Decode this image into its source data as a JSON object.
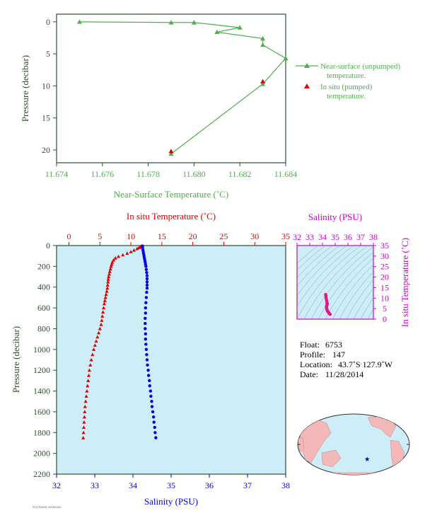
{
  "colors": {
    "green": "#4cb04c",
    "red": "#e00000",
    "blue": "#0000e0",
    "magenta": "#cc00cc",
    "plot_bg": "#cdeef8",
    "axis_dark": "#2f4f2f",
    "land": "#f4b8b8",
    "ocean": "#cdeef8"
  },
  "chart_data": [
    {
      "type": "line",
      "id": "near-surface-profile",
      "xlabel": "Near-Surface Temperature (˚C)",
      "ylabel": "Pressure (decibar)",
      "xlim": [
        11.674,
        11.684
      ],
      "ylim": [
        22,
        -1.2
      ],
      "xticks": [
        "11.674",
        "11.676",
        "11.678",
        "11.680",
        "11.682",
        "11.684"
      ],
      "xtick_values": [
        11.674,
        11.676,
        11.678,
        11.68,
        11.682,
        11.684
      ],
      "yticks": [
        "0",
        "5",
        "10",
        "15",
        "20"
      ],
      "ytick_values": [
        0,
        5,
        10,
        15,
        20
      ],
      "series": [
        {
          "name": "Near-surface (unpumped) temperature.",
          "marker": "triangle",
          "color": "#4cb04c",
          "points": [
            [
              11.675,
              0.0
            ],
            [
              11.679,
              0.1
            ],
            [
              11.68,
              0.1
            ],
            [
              11.682,
              0.9
            ],
            [
              11.681,
              1.6
            ],
            [
              11.683,
              2.6
            ],
            [
              11.683,
              3.6
            ],
            [
              11.684,
              5.7
            ],
            [
              11.683,
              9.7
            ],
            [
              11.679,
              20.6
            ]
          ]
        },
        {
          "name": "In situ (pumped) temperature.",
          "marker": "triangle",
          "color": "#e00000",
          "points": [
            [
              11.683,
              9.3
            ],
            [
              11.679,
              20.2
            ]
          ]
        }
      ]
    },
    {
      "type": "scatter",
      "id": "deep-profile",
      "top_xlabel": "In situ Temperature (˚C)",
      "bottom_xlabel": "Salinity (PSU)",
      "ylabel": "Pressure (decibar)",
      "temp_lim": [
        -2,
        35
      ],
      "sal_lim": [
        32,
        38
      ],
      "ylim": [
        0,
        2200
      ],
      "temp_ticks": [
        "0",
        "5",
        "10",
        "15",
        "20",
        "25",
        "30",
        "35"
      ],
      "temp_tick_values": [
        0,
        5,
        10,
        15,
        20,
        25,
        30,
        35
      ],
      "sal_ticks": [
        "32",
        "33",
        "34",
        "35",
        "36",
        "37",
        "38"
      ],
      "sal_tick_values": [
        32,
        33,
        34,
        35,
        36,
        37,
        38
      ],
      "yticks": [
        "0",
        "200",
        "400",
        "600",
        "800",
        "1000",
        "1200",
        "1400",
        "1600",
        "1800",
        "2000",
        "2200"
      ],
      "ytick_values": [
        0,
        200,
        400,
        600,
        800,
        1000,
        1200,
        1400,
        1600,
        1800,
        2000,
        2200
      ],
      "temperature": [
        [
          11.68,
          5
        ],
        [
          11.6,
          10
        ],
        [
          11.5,
          15
        ],
        [
          11.3,
          20
        ],
        [
          11.0,
          30
        ],
        [
          10.5,
          45
        ],
        [
          10.0,
          60
        ],
        [
          9.4,
          75
        ],
        [
          8.7,
          90
        ],
        [
          8.0,
          105
        ],
        [
          7.5,
          120
        ],
        [
          7.2,
          140
        ],
        [
          7.0,
          160
        ],
        [
          6.9,
          180
        ],
        [
          6.8,
          200
        ],
        [
          6.7,
          225
        ],
        [
          6.6,
          250
        ],
        [
          6.5,
          275
        ],
        [
          6.4,
          300
        ],
        [
          6.35,
          325
        ],
        [
          6.3,
          350
        ],
        [
          6.25,
          380
        ],
        [
          6.2,
          410
        ],
        [
          6.1,
          440
        ],
        [
          6.0,
          470
        ],
        [
          5.9,
          500
        ],
        [
          5.8,
          530
        ],
        [
          5.7,
          560
        ],
        [
          5.6,
          600
        ],
        [
          5.5,
          640
        ],
        [
          5.4,
          680
        ],
        [
          5.3,
          720
        ],
        [
          5.2,
          760
        ],
        [
          5.0,
          800
        ],
        [
          4.8,
          840
        ],
        [
          4.6,
          880
        ],
        [
          4.4,
          920
        ],
        [
          4.2,
          960
        ],
        [
          4.0,
          1000
        ],
        [
          3.8,
          1050
        ],
        [
          3.6,
          1100
        ],
        [
          3.45,
          1150
        ],
        [
          3.3,
          1200
        ],
        [
          3.2,
          1250
        ],
        [
          3.1,
          1300
        ],
        [
          3.0,
          1350
        ],
        [
          2.9,
          1400
        ],
        [
          2.8,
          1450
        ],
        [
          2.7,
          1500
        ],
        [
          2.6,
          1550
        ],
        [
          2.55,
          1600
        ],
        [
          2.5,
          1650
        ],
        [
          2.45,
          1700
        ],
        [
          2.4,
          1750
        ],
        [
          2.35,
          1800
        ],
        [
          2.3,
          1850
        ]
      ],
      "salinity": [
        [
          34.25,
          5
        ],
        [
          34.25,
          20
        ],
        [
          34.26,
          40
        ],
        [
          34.27,
          60
        ],
        [
          34.28,
          80
        ],
        [
          34.29,
          100
        ],
        [
          34.3,
          120
        ],
        [
          34.31,
          140
        ],
        [
          34.32,
          160
        ],
        [
          34.33,
          180
        ],
        [
          34.34,
          200
        ],
        [
          34.35,
          230
        ],
        [
          34.36,
          260
        ],
        [
          34.37,
          290
        ],
        [
          34.37,
          320
        ],
        [
          34.37,
          350
        ],
        [
          34.37,
          380
        ],
        [
          34.37,
          410
        ],
        [
          34.36,
          450
        ],
        [
          34.35,
          500
        ],
        [
          34.34,
          550
        ],
        [
          34.33,
          600
        ],
        [
          34.33,
          650
        ],
        [
          34.32,
          700
        ],
        [
          34.32,
          750
        ],
        [
          34.32,
          800
        ],
        [
          34.33,
          850
        ],
        [
          34.33,
          900
        ],
        [
          34.34,
          950
        ],
        [
          34.35,
          1000
        ],
        [
          34.36,
          1050
        ],
        [
          34.37,
          1100
        ],
        [
          34.38,
          1150
        ],
        [
          34.4,
          1200
        ],
        [
          34.41,
          1250
        ],
        [
          34.43,
          1300
        ],
        [
          34.44,
          1350
        ],
        [
          34.46,
          1400
        ],
        [
          34.47,
          1450
        ],
        [
          34.49,
          1500
        ],
        [
          34.5,
          1550
        ],
        [
          34.52,
          1600
        ],
        [
          34.54,
          1650
        ],
        [
          34.55,
          1700
        ],
        [
          34.57,
          1750
        ],
        [
          34.58,
          1800
        ],
        [
          34.6,
          1850
        ]
      ]
    },
    {
      "type": "scatter",
      "id": "ts-diagram",
      "title": "Salinity (PSU)",
      "ylabel": "In situ Temperature (˚C)",
      "xlim": [
        32,
        38
      ],
      "ylim": [
        0,
        35
      ],
      "xticks": [
        "32",
        "33",
        "34",
        "35",
        "36",
        "37",
        "38"
      ],
      "xtick_values": [
        32,
        33,
        34,
        35,
        36,
        37,
        38
      ],
      "yticks": [
        "0",
        "5",
        "10",
        "15",
        "20",
        "25",
        "30",
        "35"
      ],
      "ytick_values": [
        0,
        5,
        10,
        15,
        20,
        25,
        30,
        35
      ],
      "points": [
        [
          34.6,
          2.3
        ],
        [
          34.55,
          2.6
        ],
        [
          34.5,
          3.0
        ],
        [
          34.45,
          3.4
        ],
        [
          34.4,
          3.8
        ],
        [
          34.37,
          4.2
        ],
        [
          34.34,
          4.8
        ],
        [
          34.33,
          5.3
        ],
        [
          34.32,
          5.8
        ],
        [
          34.33,
          6.3
        ],
        [
          34.35,
          6.6
        ],
        [
          34.37,
          7.0
        ],
        [
          34.37,
          7.5
        ],
        [
          34.35,
          8.0
        ],
        [
          34.32,
          9.0
        ],
        [
          34.29,
          10.0
        ],
        [
          34.27,
          11.0
        ],
        [
          34.25,
          11.7
        ]
      ]
    }
  ],
  "info": {
    "float_label": "Float:",
    "float_value": "6753",
    "profile_label": "Profile:",
    "profile_value": "147",
    "location_label": "Location:",
    "location_value": "43.7˚S  127.9˚W",
    "date_label": "Date:",
    "date_value": "11/28/2014"
  },
  "map": {
    "location_lon": -127.9,
    "location_lat": -43.7,
    "marker_color": "#0000cc"
  },
  "footer": {
    "stamp": "PLOTDATE 20150105"
  }
}
